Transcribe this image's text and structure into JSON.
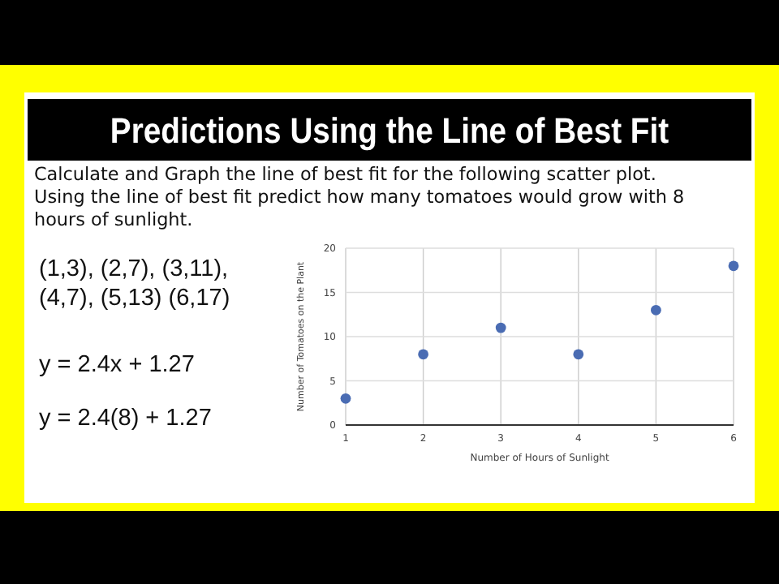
{
  "chart_data": {
    "type": "scatter",
    "title": "Predictions Using the Line of Best Fit",
    "subtitle": "Calculate and Graph the line of best fit for the following scatter plot. Using the line of best fit predict how many tomatoes would grow with 8 hours of sunlight.",
    "xlabel": "Number of Hours of Sunlight",
    "ylabel": "Number of Tomatoes on the Plant",
    "x": [
      1,
      2,
      3,
      4,
      5,
      6
    ],
    "series": [
      {
        "color": "#4a6cb3",
        "values": [
          3,
          8,
          11,
          8,
          13,
          18
        ]
      }
    ],
    "xlim": [
      1,
      6
    ],
    "xticks": [
      1,
      2,
      3,
      4,
      5,
      6
    ],
    "ylim": [
      0,
      20
    ],
    "yticks": [
      0,
      5,
      10,
      15,
      20
    ],
    "grid": true,
    "marker": "circle",
    "annotations": [
      "(1,3), (2,7), (3,11),",
      "(4,7), (5,13) (6,17)",
      "y = 2.4x + 1.27",
      "y = 2.4(8) + 1.27"
    ]
  }
}
